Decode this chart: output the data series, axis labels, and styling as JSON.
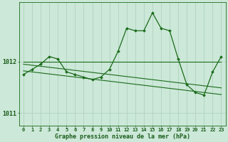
{
  "hours": [
    0,
    1,
    2,
    3,
    4,
    5,
    6,
    7,
    8,
    9,
    10,
    11,
    12,
    13,
    14,
    15,
    16,
    17,
    18,
    19,
    20,
    21,
    22,
    23
  ],
  "pressure_main": [
    1011.75,
    1011.85,
    1011.95,
    1012.1,
    1012.05,
    1011.8,
    1011.75,
    1011.7,
    1011.65,
    1011.7,
    1011.85,
    1012.2,
    1012.65,
    1012.6,
    1012.6,
    1012.95,
    1012.65,
    1012.6,
    1012.05,
    1011.55,
    1011.4,
    1011.35,
    1011.8,
    1012.1
  ],
  "line_flat": [
    1012.0,
    1012.0,
    1012.0,
    1012.0,
    1012.0,
    1012.0,
    1012.0,
    1012.0,
    1012.0,
    1012.0,
    1012.0,
    1012.0,
    1012.0,
    1012.0,
    1012.0,
    1012.0,
    1012.0,
    1012.0,
    1012.0,
    1012.0,
    1012.0,
    1012.0,
    1012.0,
    1012.0
  ],
  "line_trend1": [
    1011.95,
    1011.93,
    1011.91,
    1011.89,
    1011.87,
    1011.85,
    1011.83,
    1011.81,
    1011.79,
    1011.77,
    1011.75,
    1011.73,
    1011.71,
    1011.69,
    1011.67,
    1011.65,
    1011.63,
    1011.61,
    1011.59,
    1011.57,
    1011.55,
    1011.53,
    1011.51,
    1011.49
  ],
  "line_trend2": [
    1011.82,
    1011.8,
    1011.78,
    1011.76,
    1011.74,
    1011.72,
    1011.7,
    1011.68,
    1011.66,
    1011.64,
    1011.62,
    1011.6,
    1011.58,
    1011.56,
    1011.54,
    1011.52,
    1011.5,
    1011.48,
    1011.46,
    1011.44,
    1011.42,
    1011.4,
    1011.38,
    1011.36
  ],
  "bg_color": "#cce8d8",
  "line_color": "#1a6b1a",
  "grid_color": "#aacfba",
  "text_color": "#1a5c1a",
  "ylim": [
    1010.75,
    1013.15
  ],
  "yticks": [
    1011,
    1012
  ],
  "xlabel": "Graphe pression niveau de la mer (hPa)"
}
